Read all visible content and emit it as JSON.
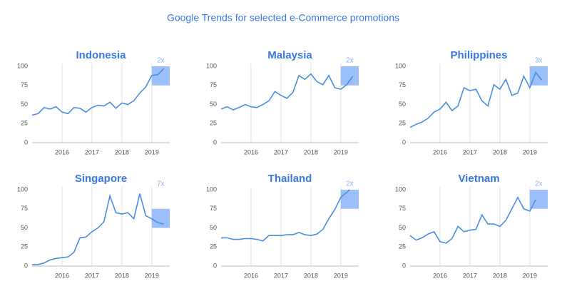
{
  "title": "Google Trends for selected e-Commerce promotions",
  "chart_data": [
    {
      "type": "line",
      "title": "Indonesia",
      "color": "#4a8ee0",
      "x": [
        2015.0,
        2015.2,
        2015.4,
        2015.6,
        2015.8,
        2016.0,
        2016.2,
        2016.4,
        2016.6,
        2016.8,
        2017.0,
        2017.2,
        2017.4,
        2017.6,
        2017.8,
        2018.0,
        2018.2,
        2018.4,
        2018.6,
        2018.8,
        2019.0,
        2019.2,
        2019.4
      ],
      "values": [
        36,
        38,
        46,
        44,
        47,
        40,
        38,
        46,
        45,
        40,
        46,
        49,
        48,
        53,
        45,
        52,
        50,
        55,
        65,
        73,
        88,
        89,
        97
      ],
      "xlim": [
        2015,
        2019.6
      ],
      "xticks": [
        2016,
        2017,
        2018,
        2019
      ],
      "ylim": [
        0,
        100
      ],
      "yticks": [
        0,
        25,
        50,
        75,
        100
      ],
      "highlight": {
        "xlim": [
          2019,
          2019.6
        ],
        "ylim": [
          75,
          100
        ],
        "label": "2x"
      }
    },
    {
      "type": "line",
      "title": "Malaysia",
      "color": "#4a8ee0",
      "x": [
        2015.0,
        2015.2,
        2015.4,
        2015.6,
        2015.8,
        2016.0,
        2016.2,
        2016.4,
        2016.6,
        2016.8,
        2017.0,
        2017.2,
        2017.4,
        2017.6,
        2017.8,
        2018.0,
        2018.2,
        2018.4,
        2018.6,
        2018.8,
        2019.0,
        2019.2,
        2019.4
      ],
      "values": [
        44,
        47,
        43,
        46,
        50,
        47,
        46,
        50,
        55,
        67,
        62,
        58,
        66,
        88,
        83,
        90,
        80,
        76,
        88,
        72,
        70,
        76,
        87
      ],
      "xlim": [
        2015,
        2019.6
      ],
      "xticks": [
        2016,
        2017,
        2018,
        2019
      ],
      "ylim": [
        0,
        100
      ],
      "yticks": [
        0,
        25,
        50,
        75,
        100
      ],
      "highlight": {
        "xlim": [
          2019,
          2019.6
        ],
        "ylim": [
          75,
          100
        ],
        "label": "2x"
      }
    },
    {
      "type": "line",
      "title": "Philippines",
      "color": "#4a8ee0",
      "x": [
        2015.0,
        2015.2,
        2015.4,
        2015.6,
        2015.8,
        2016.0,
        2016.2,
        2016.4,
        2016.6,
        2016.8,
        2017.0,
        2017.2,
        2017.4,
        2017.6,
        2017.8,
        2018.0,
        2018.2,
        2018.4,
        2018.6,
        2018.8,
        2019.0,
        2019.2,
        2019.4
      ],
      "values": [
        20,
        24,
        27,
        32,
        40,
        44,
        53,
        42,
        48,
        72,
        68,
        70,
        55,
        48,
        76,
        70,
        83,
        62,
        65,
        87,
        72,
        92,
        82
      ],
      "xlim": [
        2015,
        2019.6
      ],
      "xticks": [
        2016,
        2017,
        2018,
        2019
      ],
      "ylim": [
        0,
        100
      ],
      "yticks": [
        0,
        25,
        50,
        75,
        100
      ],
      "highlight": {
        "xlim": [
          2019,
          2019.6
        ],
        "ylim": [
          75,
          100
        ],
        "label": "3x"
      }
    },
    {
      "type": "line",
      "title": "Singapore",
      "color": "#4a8ee0",
      "x": [
        2015.0,
        2015.2,
        2015.4,
        2015.6,
        2015.8,
        2016.0,
        2016.2,
        2016.4,
        2016.6,
        2016.8,
        2017.0,
        2017.2,
        2017.4,
        2017.6,
        2017.8,
        2018.0,
        2018.2,
        2018.4,
        2018.6,
        2018.8,
        2019.0,
        2019.2,
        2019.4
      ],
      "values": [
        2,
        2,
        4,
        8,
        10,
        11,
        12,
        18,
        37,
        38,
        45,
        50,
        58,
        92,
        70,
        68,
        70,
        62,
        95,
        66,
        62,
        57,
        55
      ],
      "xlim": [
        2015,
        2019.6
      ],
      "xticks": [
        2016,
        2017,
        2018,
        2019
      ],
      "ylim": [
        0,
        100
      ],
      "yticks": [
        0,
        25,
        50,
        75,
        100
      ],
      "highlight": {
        "xlim": [
          2019,
          2019.6
        ],
        "ylim": [
          50,
          75
        ],
        "label": "7x"
      }
    },
    {
      "type": "line",
      "title": "Thailand",
      "color": "#4a8ee0",
      "x": [
        2015.0,
        2015.2,
        2015.4,
        2015.6,
        2015.8,
        2016.0,
        2016.2,
        2016.4,
        2016.6,
        2016.8,
        2017.0,
        2017.2,
        2017.4,
        2017.6,
        2017.8,
        2018.0,
        2018.2,
        2018.4,
        2018.6,
        2018.8,
        2019.0,
        2019.3
      ],
      "values": [
        37,
        37,
        35,
        35,
        36,
        36,
        35,
        33,
        40,
        40,
        40,
        41,
        41,
        44,
        41,
        40,
        42,
        48,
        62,
        74,
        90,
        100
      ],
      "xlim": [
        2015,
        2019.6
      ],
      "xticks": [
        2016,
        2017,
        2018,
        2019
      ],
      "ylim": [
        0,
        100
      ],
      "yticks": [
        0,
        25,
        50,
        75,
        100
      ],
      "highlight": {
        "xlim": [
          2019,
          2019.6
        ],
        "ylim": [
          75,
          100
        ],
        "label": "2x"
      }
    },
    {
      "type": "line",
      "title": "Vietnam",
      "color": "#4a8ee0",
      "x": [
        2015.0,
        2015.2,
        2015.4,
        2015.6,
        2015.8,
        2016.0,
        2016.2,
        2016.4,
        2016.6,
        2016.8,
        2017.0,
        2017.2,
        2017.4,
        2017.6,
        2017.8,
        2018.0,
        2018.2,
        2018.4,
        2018.6,
        2018.8,
        2019.0,
        2019.2
      ],
      "values": [
        40,
        34,
        37,
        42,
        45,
        32,
        30,
        36,
        52,
        45,
        47,
        48,
        67,
        55,
        55,
        52,
        60,
        75,
        90,
        75,
        72,
        87
      ],
      "xlim": [
        2015,
        2019.6
      ],
      "xticks": [
        2016,
        2017,
        2018,
        2019
      ],
      "ylim": [
        0,
        100
      ],
      "yticks": [
        0,
        25,
        50,
        75,
        100
      ],
      "highlight": {
        "xlim": [
          2019,
          2019.6
        ],
        "ylim": [
          75,
          100
        ],
        "label": "2x"
      }
    }
  ]
}
